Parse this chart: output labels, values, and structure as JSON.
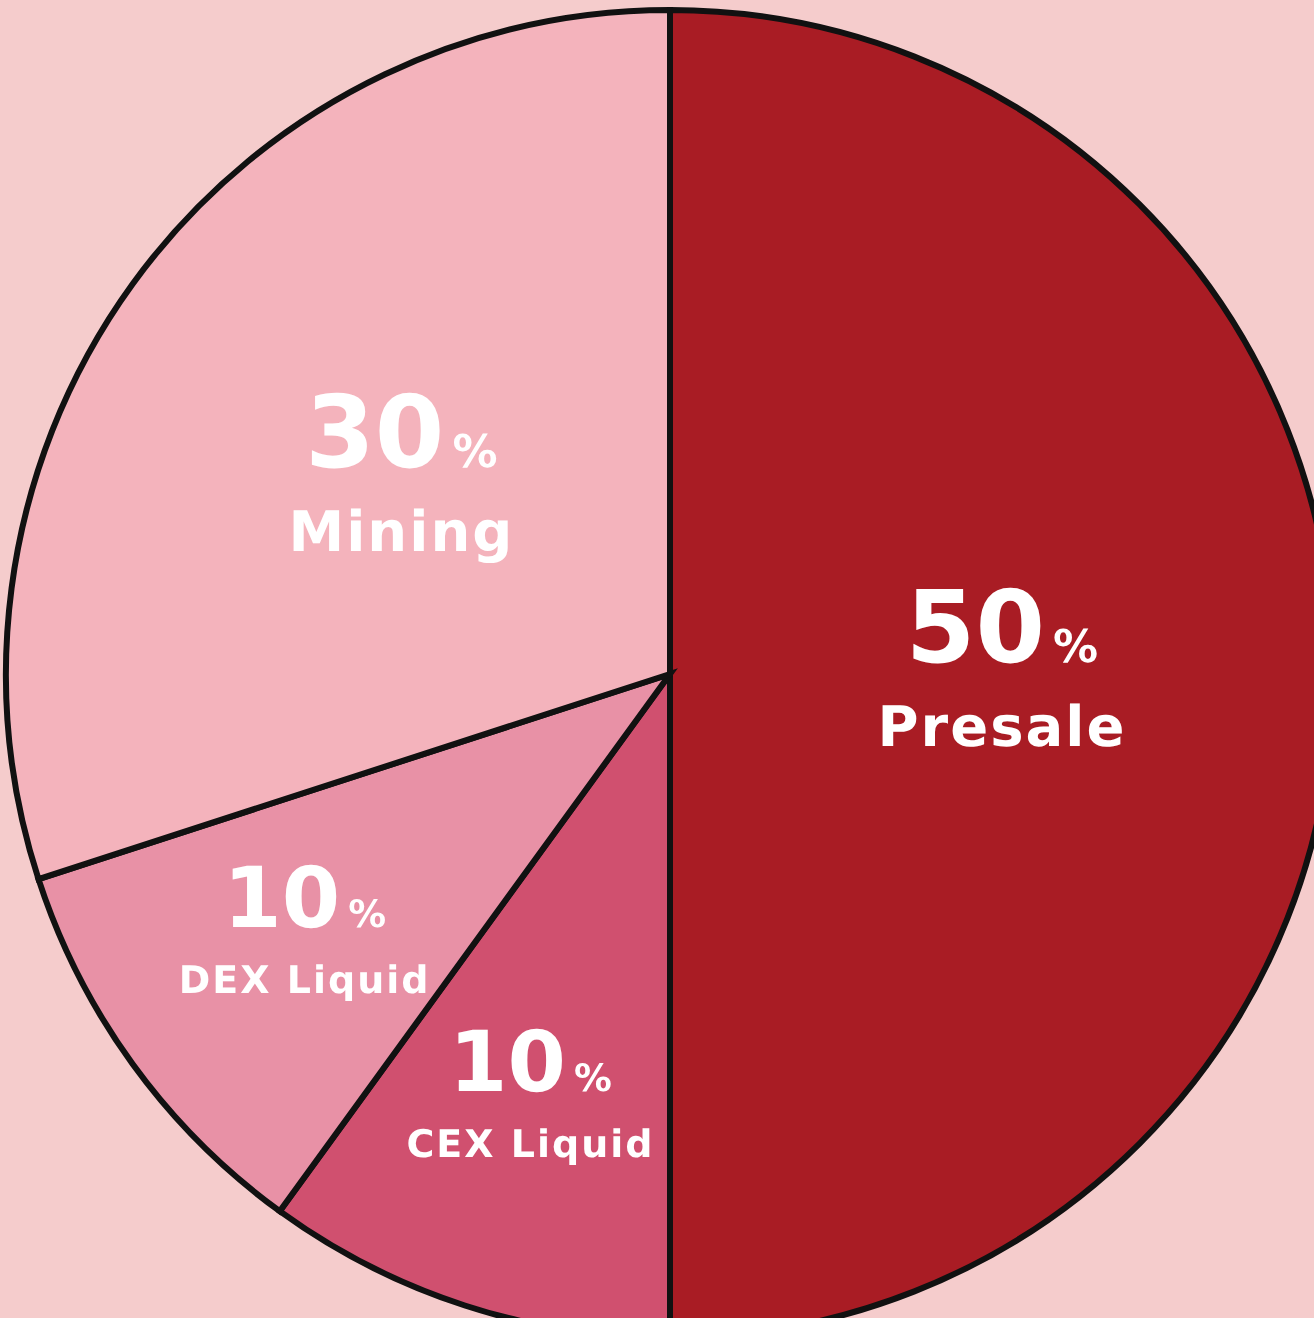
{
  "chart_data": {
    "type": "pie",
    "categories": [
      "Presale",
      "CEX Liquid",
      "DEX Liquid",
      "Mining"
    ],
    "values": [
      50,
      10,
      10,
      30
    ],
    "value_labels": [
      "50%",
      "10%",
      "10%",
      "30%"
    ],
    "colors": [
      "#a91c24",
      "#d0506f",
      "#e891a6",
      "#f4b3bc"
    ]
  }
}
